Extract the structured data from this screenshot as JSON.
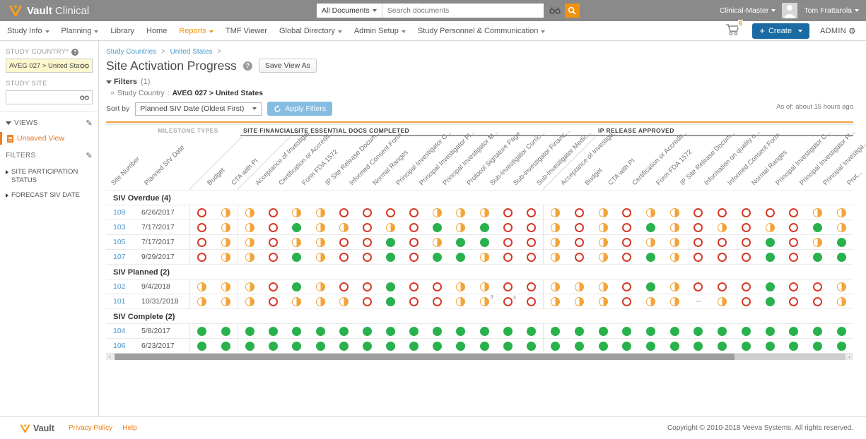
{
  "topbar": {
    "logo_bold": "Vault",
    "logo_rest": "Clinical",
    "search": {
      "scope": "All Documents",
      "placeholder": "Search documents"
    },
    "vault_name": "Clinical-Master",
    "user_name": "Tom Frattarola"
  },
  "navbar": {
    "items": [
      {
        "label": "Study Info",
        "dropdown": true,
        "active": false
      },
      {
        "label": "Planning",
        "dropdown": true,
        "active": false
      },
      {
        "label": "Library",
        "dropdown": false,
        "active": false
      },
      {
        "label": "Home",
        "dropdown": false,
        "active": false
      },
      {
        "label": "Reports",
        "dropdown": true,
        "active": true
      },
      {
        "label": "TMF Viewer",
        "dropdown": false,
        "active": false
      },
      {
        "label": "Global Directory",
        "dropdown": true,
        "active": false
      },
      {
        "label": "Admin Setup",
        "dropdown": true,
        "active": false
      },
      {
        "label": "Study Personnel & Communication",
        "dropdown": true,
        "active": false
      }
    ],
    "cart_count": "6",
    "create_label": "Create",
    "admin_label": "ADMIN"
  },
  "sidebar": {
    "study_country_label": "STUDY COUNTRY*",
    "study_country_value": "AVEG 027 > United States",
    "study_site_label": "STUDY SITE",
    "views_label": "VIEWS",
    "unsaved_view": "Unsaved View",
    "filters_label": "FILTERS",
    "filter_items": [
      "SITE PARTICIPATION STATUS",
      "FORECAST SIV DATE"
    ]
  },
  "main": {
    "breadcrumb": {
      "item1": "Study Countries",
      "item2": "United States",
      "sep": ">"
    },
    "title": "Site Activation Progress",
    "save_view_as": "Save View As",
    "filters_toggle": "Filters",
    "filters_count": "(1)",
    "applied_filter_label": "Study Country",
    "applied_filter_value": "AVEG 027 > United States",
    "sort_by_label": "Sort by",
    "sort_value": "Planned SIV Date (Oldest First)",
    "apply_filters": "Apply Filters",
    "as_of": "As of: about 15 hours ago"
  },
  "table": {
    "groups": [
      {
        "label": "MILESTONE TYPES"
      },
      {
        "label": "SITE FINANCIAL..."
      },
      {
        "label": "SITE ESSENTIAL DOCS COMPLETED"
      },
      {
        "label": "IP RELEASE APPROVED"
      }
    ],
    "fixed_columns": [
      "Site Number",
      "Planned SIV Date"
    ],
    "group2_columns": [
      "Budget",
      "CTA with PI"
    ],
    "group3_columns": [
      "Acceptance of Investigat...",
      "Certification or Accredit...",
      "Form FDA 1572",
      "IP Site Release Docum...",
      "Informed Consent Form",
      "Normal Ranges",
      "Principal Investigator C...",
      "Principal Investigator Fl...",
      "Principal Investigator M...",
      "Protocol Signature Page",
      "Sub-Investigator Curric...",
      "Sub-Investigator Financ...",
      "Sub-Investigator Medic..."
    ],
    "group4_columns": [
      "Acceptance of Investiga...",
      "Budget",
      "CTA with PI",
      "Certification or Accredit...",
      "Form FDA 1572",
      "IP Site Release Docum...",
      "Information on quality o...",
      "Informed Consent Form",
      "Normal Ranges",
      "Principal Investigator C...",
      "Principal Investigator Fl...",
      "Principal Investiga...",
      "Prot..."
    ],
    "status_legend": {
      "R": "not-started",
      "H": "in-progress",
      "G": "complete",
      "D": "not-applicable"
    },
    "sections": [
      {
        "label": "SIV Overdue (4)",
        "rows": [
          {
            "site": "109",
            "date": "6/26/2017",
            "statuses": [
              "R",
              "H",
              "H",
              "R",
              "H",
              "H",
              "R",
              "R",
              "R",
              "R",
              "H",
              "H",
              "H",
              "R",
              "R",
              "H",
              "R",
              "H",
              "R",
              "H",
              "H",
              "R",
              "R",
              "R",
              "R",
              "R",
              "H",
              "H"
            ]
          },
          {
            "site": "103",
            "date": "7/17/2017",
            "statuses": [
              "R",
              "H",
              "H",
              "R",
              "G",
              "H",
              "H",
              "R",
              "H",
              "R",
              "G",
              "H",
              "G",
              "R",
              "R",
              "H",
              "R",
              "H",
              "R",
              "G",
              "H",
              "R",
              "H",
              "R",
              "H",
              "R",
              "G",
              "H"
            ]
          },
          {
            "site": "105",
            "date": "7/17/2017",
            "statuses": [
              "R",
              "H",
              "H",
              "R",
              "H",
              "H",
              "R",
              "R",
              "G",
              "R",
              "H",
              "G",
              "G",
              "R",
              "R",
              "H",
              "R",
              "H",
              "R",
              "H",
              "H",
              "R",
              "R",
              "R",
              "G",
              "R",
              "H",
              "G"
            ]
          },
          {
            "site": "107",
            "date": "9/29/2017",
            "statuses": [
              "R",
              "H",
              "H",
              "R",
              "G",
              "H",
              "R",
              "R",
              "G",
              "R",
              "G",
              "G",
              "H",
              "R",
              "R",
              "H",
              "R",
              "H",
              "R",
              "G",
              "H",
              "R",
              "R",
              "R",
              "G",
              "R",
              "G",
              "G"
            ]
          }
        ]
      },
      {
        "label": "SIV Planned (2)",
        "rows": [
          {
            "site": "102",
            "date": "9/4/2018",
            "statuses": [
              "H",
              "H",
              "H",
              "R",
              "G",
              "H",
              "R",
              "R",
              "G",
              "R",
              "R",
              "H",
              "H",
              "R",
              "R",
              "H",
              "H",
              "H",
              "R",
              "G",
              "H",
              "R",
              "R",
              "R",
              "G",
              "R",
              "R",
              "H"
            ]
          },
          {
            "site": "101",
            "date": "10/31/2018",
            "statuses": [
              "H",
              "H",
              "H",
              "R",
              "H",
              "H",
              "H",
              "R",
              "G",
              "R",
              "R",
              "H",
              "H3",
              "R3",
              "R",
              "H",
              "H",
              "H",
              "R",
              "H",
              "H",
              "D",
              "H",
              "R",
              "G",
              "R",
              "R",
              "H"
            ]
          }
        ]
      },
      {
        "label": "SIV Complete (2)",
        "rows": [
          {
            "site": "104",
            "date": "5/8/2017",
            "statuses": [
              "G",
              "G",
              "G",
              "G",
              "G",
              "G",
              "G",
              "G",
              "G",
              "G",
              "G",
              "G",
              "G",
              "G",
              "G",
              "G",
              "G",
              "G",
              "G",
              "G",
              "G",
              "G",
              "G",
              "G",
              "G",
              "G",
              "G",
              "G"
            ]
          },
          {
            "site": "106",
            "date": "6/23/2017",
            "statuses": [
              "G",
              "G",
              "G",
              "G",
              "G",
              "G",
              "G",
              "G",
              "G",
              "G",
              "G",
              "G",
              "G",
              "G",
              "G",
              "G",
              "G",
              "G",
              "G",
              "G",
              "G",
              "G",
              "G",
              "G",
              "G",
              "G",
              "G",
              "G"
            ]
          }
        ]
      }
    ]
  },
  "footer": {
    "logo": "Vault",
    "links": [
      "Privacy Policy",
      "Help"
    ],
    "copyright": "Copyright © 2010-2018 Veeva Systems. All rights reserved."
  }
}
